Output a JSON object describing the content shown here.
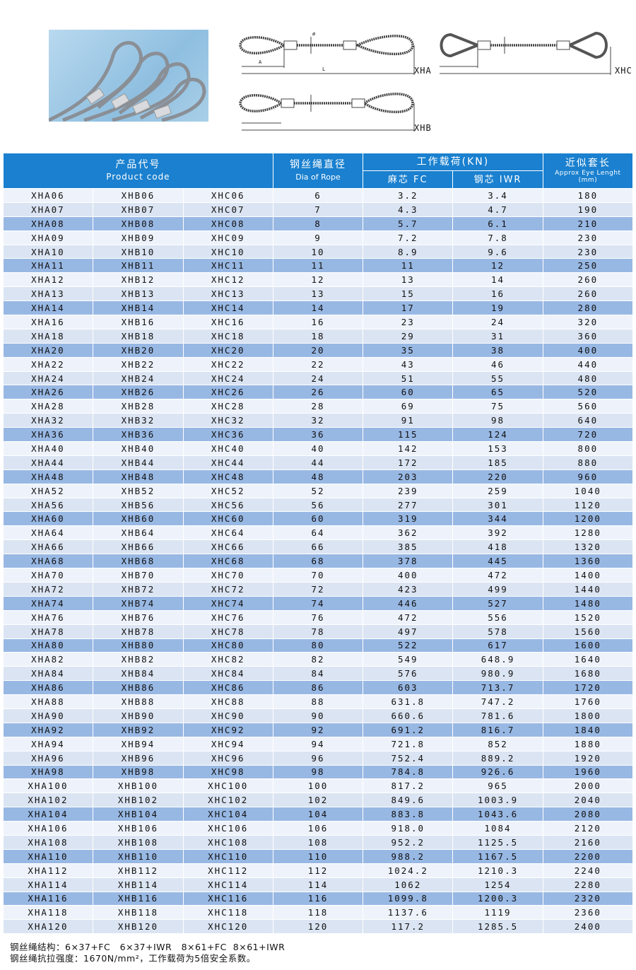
{
  "diagram_labels": {
    "xha": "XHA",
    "xhc": "XHC",
    "xhb": "XHB",
    "a": "A",
    "l": "L",
    "phi": "ø"
  },
  "header": {
    "product_code_cn": "产品代号",
    "product_code_en": "Product code",
    "dia_cn": "钢丝绳直径",
    "dia_en": "Dia of Rope",
    "load_cn": "工作载荷(KN)",
    "fc": "麻芯 FC",
    "iwr": "钢芯 IWR",
    "eye_cn": "近似套长",
    "eye_en": "Approx Eye Lenght",
    "eye_unit": "(mm)"
  },
  "rows": [
    [
      "XHA06",
      "XHB06",
      "XHC06",
      "6",
      "3.2",
      "3.4",
      "180"
    ],
    [
      "XHA07",
      "XHB07",
      "XHC07",
      "7",
      "4.3",
      "4.7",
      "190"
    ],
    [
      "XHA08",
      "XHB08",
      "XHC08",
      "8",
      "5.7",
      "6.1",
      "210"
    ],
    [
      "XHA09",
      "XHB09",
      "XHC09",
      "9",
      "7.2",
      "7.8",
      "230"
    ],
    [
      "XHA10",
      "XHB10",
      "XHC10",
      "10",
      "8.9",
      "9.6",
      "230"
    ],
    [
      "XHA11",
      "XHB11",
      "XHC11",
      "11",
      "11",
      "12",
      "250"
    ],
    [
      "XHA12",
      "XHB12",
      "XHC12",
      "12",
      "13",
      "14",
      "260"
    ],
    [
      "XHA13",
      "XHB13",
      "XHC13",
      "13",
      "15",
      "16",
      "260"
    ],
    [
      "XHA14",
      "XHB14",
      "XHC14",
      "14",
      "17",
      "19",
      "280"
    ],
    [
      "XHA16",
      "XHB16",
      "XHC16",
      "16",
      "23",
      "24",
      "320"
    ],
    [
      "XHA18",
      "XHB18",
      "XHC18",
      "18",
      "29",
      "31",
      "360"
    ],
    [
      "XHA20",
      "XHB20",
      "XHC20",
      "20",
      "35",
      "38",
      "400"
    ],
    [
      "XHA22",
      "XHB22",
      "XHC22",
      "22",
      "43",
      "46",
      "440"
    ],
    [
      "XHA24",
      "XHB24",
      "XHC24",
      "24",
      "51",
      "55",
      "480"
    ],
    [
      "XHA26",
      "XHB26",
      "XHC26",
      "26",
      "60",
      "65",
      "520"
    ],
    [
      "XHA28",
      "XHB28",
      "XHC28",
      "28",
      "69",
      "75",
      "560"
    ],
    [
      "XHA32",
      "XHB32",
      "XHC32",
      "32",
      "91",
      "98",
      "640"
    ],
    [
      "XHA36",
      "XHB36",
      "XHC36",
      "36",
      "115",
      "124",
      "720"
    ],
    [
      "XHA40",
      "XHB40",
      "XHC40",
      "40",
      "142",
      "153",
      "800"
    ],
    [
      "XHA44",
      "XHB44",
      "XHC44",
      "44",
      "172",
      "185",
      "880"
    ],
    [
      "XHA48",
      "XHB48",
      "XHC48",
      "48",
      "203",
      "220",
      "960"
    ],
    [
      "XHA52",
      "XHB52",
      "XHC52",
      "52",
      "239",
      "259",
      "1040"
    ],
    [
      "XHA56",
      "XHB56",
      "XHC56",
      "56",
      "277",
      "301",
      "1120"
    ],
    [
      "XHA60",
      "XHB60",
      "XHC60",
      "60",
      "319",
      "344",
      "1200"
    ],
    [
      "XHA64",
      "XHB64",
      "XHC64",
      "64",
      "362",
      "392",
      "1280"
    ],
    [
      "XHA66",
      "XHB66",
      "XHC66",
      "66",
      "385",
      "418",
      "1320"
    ],
    [
      "XHA68",
      "XHB68",
      "XHC68",
      "68",
      "378",
      "445",
      "1360"
    ],
    [
      "XHA70",
      "XHB70",
      "XHC70",
      "70",
      "400",
      "472",
      "1400"
    ],
    [
      "XHA72",
      "XHB72",
      "XHC72",
      "72",
      "423",
      "499",
      "1440"
    ],
    [
      "XHA74",
      "XHB74",
      "XHC74",
      "74",
      "446",
      "527",
      "1480"
    ],
    [
      "XHA76",
      "XHB76",
      "XHC76",
      "76",
      "472",
      "556",
      "1520"
    ],
    [
      "XHA78",
      "XHB78",
      "XHC78",
      "78",
      "497",
      "578",
      "1560"
    ],
    [
      "XHA80",
      "XHB80",
      "XHC80",
      "80",
      "522",
      "617",
      "1600"
    ],
    [
      "XHA82",
      "XHB82",
      "XHC82",
      "82",
      "549",
      "648.9",
      "1640"
    ],
    [
      "XHA84",
      "XHB84",
      "XHC84",
      "84",
      "576",
      "980.9",
      "1680"
    ],
    [
      "XHA86",
      "XHB86",
      "XHC86",
      "86",
      "603",
      "713.7",
      "1720"
    ],
    [
      "XHA88",
      "XHB88",
      "XHC88",
      "88",
      "631.8",
      "747.2",
      "1760"
    ],
    [
      "XHA90",
      "XHB90",
      "XHC90",
      "90",
      "660.6",
      "781.6",
      "1800"
    ],
    [
      "XHA92",
      "XHB92",
      "XHC92",
      "92",
      "691.2",
      "816.7",
      "1840"
    ],
    [
      "XHA94",
      "XHB94",
      "XHC94",
      "94",
      "721.8",
      "852",
      "1880"
    ],
    [
      "XHA96",
      "XHB96",
      "XHC96",
      "96",
      "752.4",
      "889.2",
      "1920"
    ],
    [
      "XHA98",
      "XHB98",
      "XHC98",
      "98",
      "784.8",
      "926.6",
      "1960"
    ],
    [
      "XHA100",
      "XHB100",
      "XHC100",
      "100",
      "817.2",
      "965",
      "2000"
    ],
    [
      "XHA102",
      "XHB102",
      "XHC102",
      "102",
      "849.6",
      "1003.9",
      "2040"
    ],
    [
      "XHA104",
      "XHB104",
      "XHC104",
      "104",
      "883.8",
      "1043.6",
      "2080"
    ],
    [
      "XHA106",
      "XHB106",
      "XHC106",
      "106",
      "918.0",
      "1084",
      "2120"
    ],
    [
      "XHA108",
      "XHB108",
      "XHC108",
      "108",
      "952.2",
      "1125.5",
      "2160"
    ],
    [
      "XHA110",
      "XHB110",
      "XHC110",
      "110",
      "988.2",
      "1167.5",
      "2200"
    ],
    [
      "XHA112",
      "XHB112",
      "XHC112",
      "112",
      "1024.2",
      "1210.3",
      "2240"
    ],
    [
      "XHA114",
      "XHB114",
      "XHC114",
      "114",
      "1062",
      "1254",
      "2280"
    ],
    [
      "XHA116",
      "XHB116",
      "XHC116",
      "116",
      "1099.8",
      "1200.3",
      "2320"
    ],
    [
      "XHA118",
      "XHB118",
      "XHC118",
      "118",
      "1137.6",
      "1119",
      "2360"
    ],
    [
      "XHA120",
      "XHB120",
      "XHC120",
      "120",
      "117.2",
      "1285.5",
      "2400"
    ]
  ],
  "notes": {
    "line1": "钢丝绳结构：6×37+FC   6×37+IWR   8×61+FC  8×61+IWR",
    "line2": "钢丝绳抗拉强度：1670N/mm²，工作载荷为5倍安全系数。"
  },
  "colors": {
    "header": "#1a80cf",
    "row_light": "#eef3fb",
    "row_mid": "#dbe4f2",
    "row_dark": "#98b8e4"
  }
}
